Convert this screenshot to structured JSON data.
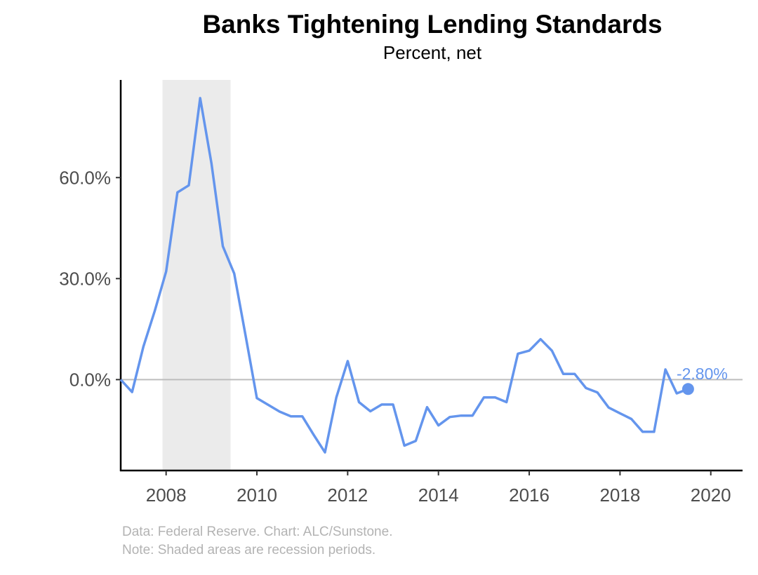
{
  "title": "Banks Tightening Lending Standards",
  "subtitle": "Percent, net",
  "caption": {
    "source": "Data: Federal Reserve. Chart: ALC/Sunstone.",
    "note": "Note: Shaded areas are recession periods."
  },
  "chart_data": {
    "type": "line",
    "title": "Banks Tightening Lending Standards",
    "subtitle": "Percent, net",
    "xlabel": "",
    "ylabel": "",
    "x_ticks": [
      "2008",
      "2010",
      "2012",
      "2014",
      "2016",
      "2018",
      "2020"
    ],
    "y_ticks": [
      "0.0%",
      "30.0%",
      "60.0%"
    ],
    "xlim": [
      2007.0,
      2020.7
    ],
    "ylim": [
      -27,
      89
    ],
    "grid": false,
    "reference_line_y": 0,
    "recession_shading": [
      [
        2007.92,
        2009.42
      ]
    ],
    "series": [
      {
        "color": "#6495ED",
        "x": [
          2007.0,
          2007.25,
          2007.5,
          2007.75,
          2008.0,
          2008.25,
          2008.5,
          2008.75,
          2009.0,
          2009.25,
          2009.5,
          2009.75,
          2010.0,
          2010.25,
          2010.5,
          2010.75,
          2011.0,
          2011.25,
          2011.5,
          2011.75,
          2012.0,
          2012.25,
          2012.5,
          2012.75,
          2013.0,
          2013.25,
          2013.5,
          2013.75,
          2014.0,
          2014.25,
          2014.5,
          2014.75,
          2015.0,
          2015.25,
          2015.5,
          2015.75,
          2016.0,
          2016.25,
          2016.5,
          2016.75,
          2017.0,
          2017.25,
          2017.5,
          2017.75,
          2018.0,
          2018.25,
          2018.5,
          2018.75,
          2019.0,
          2019.25,
          2019.5
        ],
        "y": [
          0.0,
          -3.7,
          9.8,
          20.4,
          32.1,
          55.6,
          57.7,
          83.6,
          64.2,
          39.6,
          31.5,
          13.2,
          -5.5,
          -7.5,
          -9.5,
          -10.9,
          -10.9,
          -16.4,
          -21.6,
          -5.3,
          5.5,
          -6.7,
          -9.4,
          -7.4,
          -7.4,
          -19.6,
          -18.2,
          -8.2,
          -13.6,
          -11.1,
          -10.7,
          -10.7,
          -5.3,
          -5.3,
          -6.7,
          7.7,
          8.6,
          12.0,
          8.6,
          1.7,
          1.7,
          -2.5,
          -3.8,
          -8.3,
          -10.0,
          -11.7,
          -15.5,
          -15.5,
          3.0,
          -4.1,
          -2.8
        ]
      }
    ],
    "last_value_label": "-2.80%"
  }
}
